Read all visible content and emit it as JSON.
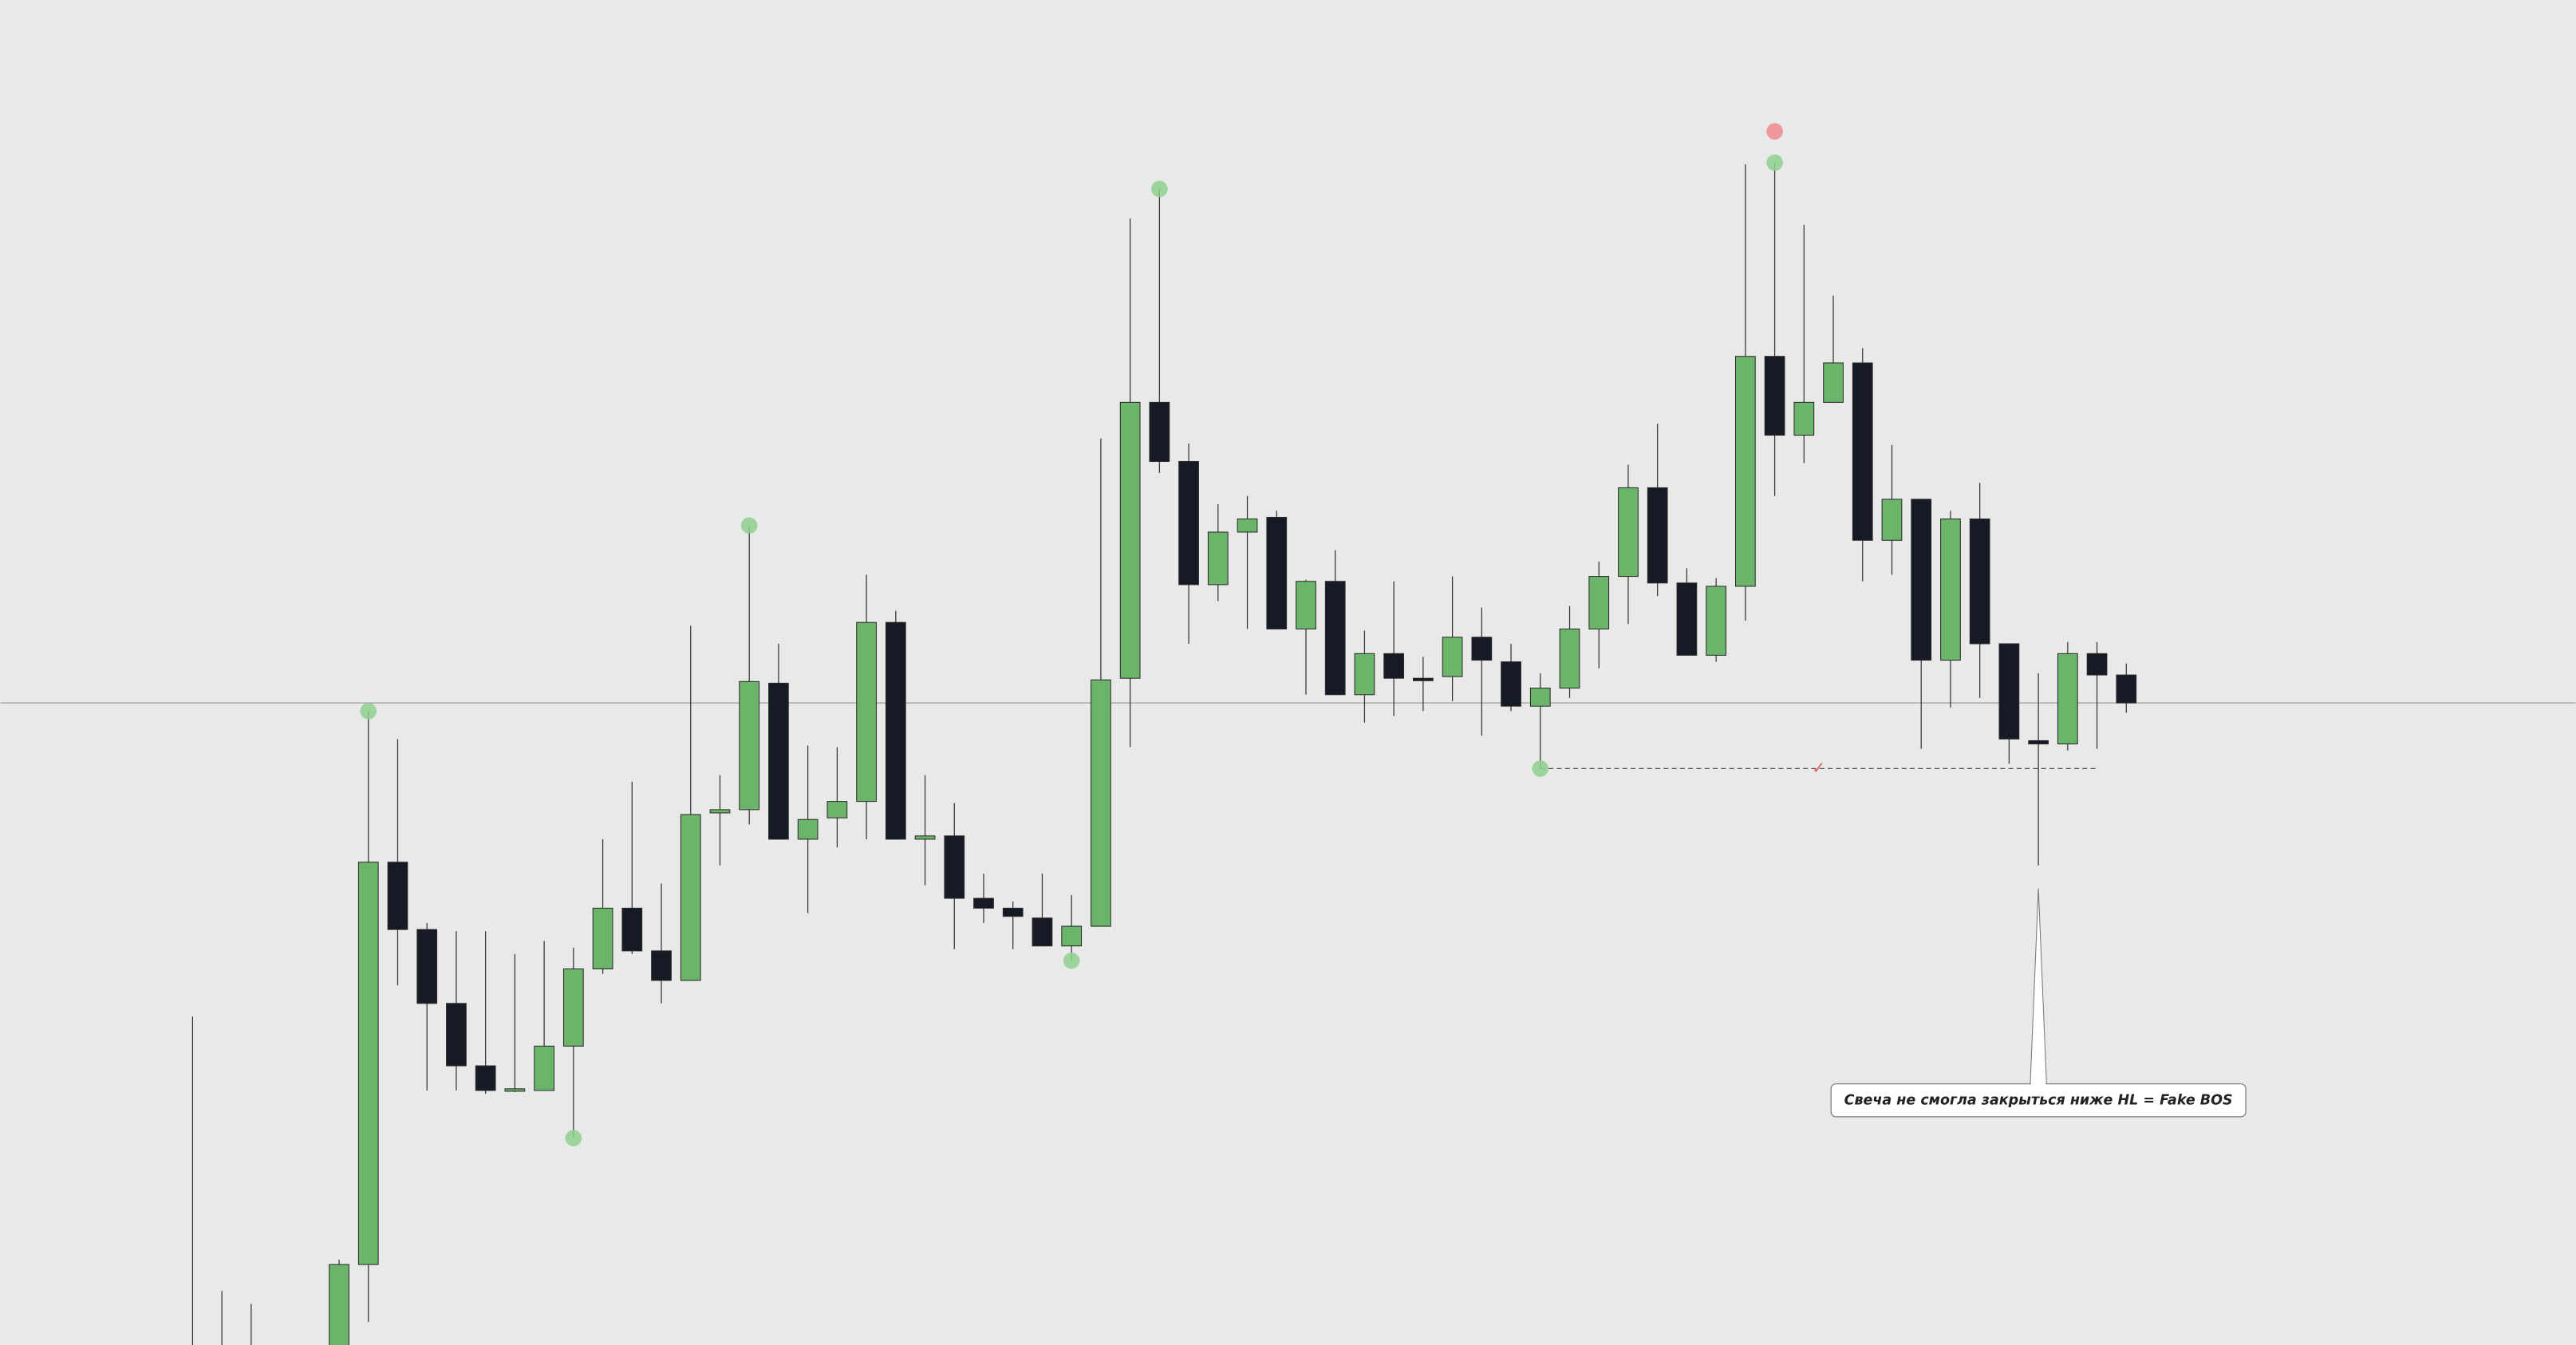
{
  "chart_data": {
    "type": "candlestick",
    "ylim": [
      0,
      819
    ],
    "up_color": "#6ab56a",
    "down_color": "#161a25",
    "open": [
      -11,
      -11,
      -11,
      null,
      null,
      -11,
      49,
      294,
      253,
      208,
      170,
      155,
      155,
      182,
      229,
      266,
      240,
      222,
      324,
      326,
      403,
      308,
      321,
      331,
      440,
      308,
      310,
      272,
      266,
      260,
      243,
      255,
      406,
      574,
      538,
      463,
      495,
      504,
      436,
      465,
      396,
      421,
      406,
      407,
      431,
      416,
      389,
      400,
      436,
      468,
      522,
      464,
      420,
      462,
      602,
      554,
      574,
      598,
      490,
      515,
      417,
      503,
      427,
      368,
      366,
      421,
      408
    ],
    "high": [
      200,
      33,
      25,
      null,
      null,
      52,
      386,
      369,
      257,
      252,
      252,
      238,
      246,
      242,
      308,
      343,
      281,
      438,
      347,
      499,
      427,
      365,
      364,
      469,
      447,
      347,
      330,
      287,
      270,
      287,
      274,
      552,
      686,
      704,
      549,
      512,
      517,
      508,
      466,
      484,
      435,
      465,
      419,
      468,
      449,
      427,
      409,
      450,
      477,
      536,
      561,
      473,
      467,
      719,
      720,
      682,
      639,
      607,
      548,
      515,
      508,
      525,
      427,
      409,
      428,
      428,
      415
    ],
    "low": [
      -31,
      -31,
      -31,
      null,
      null,
      -21,
      14,
      219,
      155,
      155,
      153,
      154,
      155,
      126,
      226,
      238,
      208,
      222,
      292,
      317,
      308,
      263,
      303,
      308,
      308,
      280,
      241,
      257,
      241,
      243,
      234,
      255,
      364,
      531,
      427,
      453,
      436,
      436,
      396,
      396,
      379,
      383,
      386,
      392,
      371,
      386,
      351,
      394,
      412,
      439,
      456,
      420,
      416,
      441,
      517,
      537,
      574,
      465,
      469,
      363,
      388,
      394,
      354,
      292,
      362,
      363,
      385
    ],
    "close": [
      -21,
      -21,
      -21,
      null,
      null,
      49,
      294,
      253,
      208,
      170,
      155,
      156,
      182,
      229,
      266,
      240,
      222,
      323,
      326,
      404,
      308,
      320,
      331,
      440,
      308,
      310,
      272,
      266,
      261,
      243,
      255,
      405,
      574,
      538,
      463,
      495,
      503,
      436,
      465,
      396,
      421,
      406,
      406,
      431,
      417,
      389,
      400,
      436,
      468,
      522,
      464,
      420,
      462,
      602,
      554,
      574,
      598,
      490,
      515,
      417,
      503,
      427,
      369,
      366,
      421,
      408,
      391
    ],
    "level": 391,
    "hl_line": {
      "value": 351,
      "start": 46,
      "end": 65,
      "label": "✓",
      "color": "#e06060"
    },
    "markers": [
      {
        "index": 6,
        "value": 386,
        "color": "#8fcf8f"
      },
      {
        "index": 13,
        "value": 126,
        "color": "#8fcf8f"
      },
      {
        "index": 19,
        "value": 499,
        "color": "#8fcf8f"
      },
      {
        "index": 30,
        "value": 234,
        "color": "#8fcf8f"
      },
      {
        "index": 33,
        "value": 704,
        "color": "#8fcf8f"
      },
      {
        "index": 46,
        "value": 351,
        "color": "#8fcf8f"
      },
      {
        "index": 54,
        "value": 720,
        "color": "#8fcf8f"
      },
      {
        "index": 54,
        "value": 739,
        "color": "#ef8a8f"
      }
    ],
    "annotation": {
      "text": "Свеча не смогла закрыться ниже HL = Fake BOS",
      "index": 63,
      "value": 278,
      "box_value": 149
    }
  }
}
